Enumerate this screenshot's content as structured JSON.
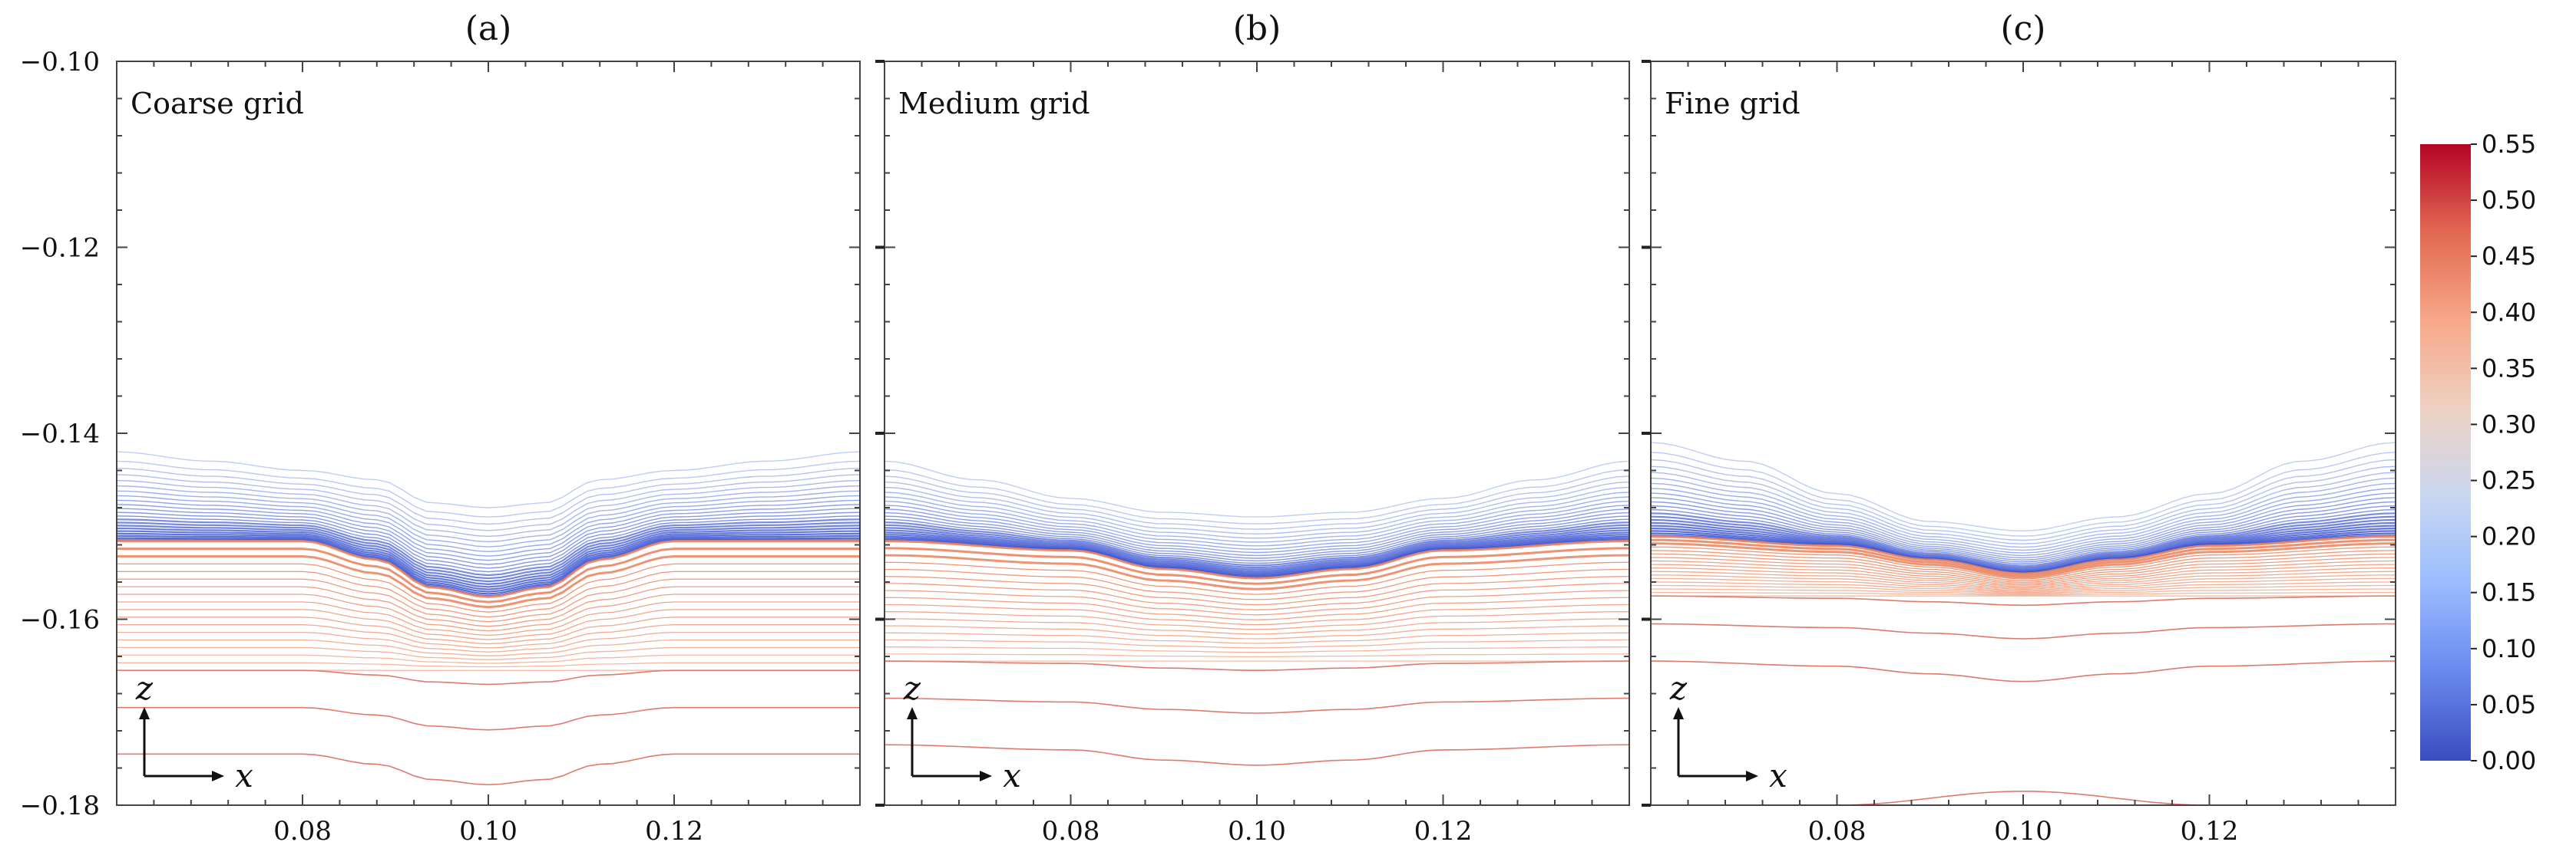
{
  "chart_data": [
    {
      "type": "contour",
      "panel_label": "(a)",
      "annotation": "Coarse grid",
      "xlim": [
        0.06,
        0.14
      ],
      "ylim": [
        -0.18,
        -0.1
      ],
      "x_ticks": [
        "0.08",
        "0.10",
        "0.12"
      ],
      "y_ticks": [
        "−0.10",
        "−0.12",
        "−0.14",
        "−0.16",
        "−0.18"
      ],
      "surface_profile": {
        "x": [
          0.06,
          0.07,
          0.08,
          0.088,
          0.094,
          0.1,
          0.106,
          0.112,
          0.12,
          0.13,
          0.14
        ],
        "z": [
          -0.146,
          -0.147,
          -0.148,
          -0.149,
          -0.1515,
          -0.152,
          -0.1515,
          -0.149,
          -0.148,
          -0.147,
          -0.146
        ]
      },
      "interface_profile": {
        "x": [
          0.06,
          0.08,
          0.088,
          0.094,
          0.1,
          0.106,
          0.112,
          0.12,
          0.14
        ],
        "z": [
          -0.151,
          -0.151,
          -0.153,
          -0.156,
          -0.157,
          -0.156,
          -0.153,
          -0.151,
          -0.151
        ]
      },
      "deep_isolines_z": [
        -0.1745,
        -0.1695,
        -0.1655
      ],
      "axes_indicator": {
        "horizontal": "x",
        "vertical": "z"
      }
    },
    {
      "type": "contour",
      "panel_label": "(b)",
      "annotation": "Medium grid",
      "xlim": [
        0.06,
        0.14
      ],
      "ylim": [
        -0.18,
        -0.1
      ],
      "x_ticks": [
        "0.08",
        "0.10",
        "0.12"
      ],
      "surface_profile": {
        "x": [
          0.06,
          0.07,
          0.08,
          0.09,
          0.1,
          0.11,
          0.12,
          0.13,
          0.14
        ],
        "z": [
          -0.147,
          -0.149,
          -0.151,
          -0.1525,
          -0.153,
          -0.1525,
          -0.151,
          -0.149,
          -0.147
        ]
      },
      "interface_profile": {
        "x": [
          0.06,
          0.08,
          0.09,
          0.1,
          0.11,
          0.12,
          0.14
        ],
        "z": [
          -0.151,
          -0.152,
          -0.154,
          -0.155,
          -0.154,
          -0.152,
          -0.151
        ]
      },
      "deep_isolines_z": [
        -0.1735,
        -0.1685,
        -0.1645
      ],
      "axes_indicator": {
        "horizontal": "x",
        "vertical": "z"
      }
    },
    {
      "type": "contour",
      "panel_label": "(c)",
      "annotation": "Fine grid",
      "xlim": [
        0.06,
        0.14
      ],
      "ylim": [
        -0.18,
        -0.1
      ],
      "x_ticks": [
        "0.08",
        "0.10",
        "0.12"
      ],
      "surface_profile": {
        "x": [
          0.06,
          0.07,
          0.08,
          0.09,
          0.1,
          0.11,
          0.12,
          0.13,
          0.14
        ],
        "z": [
          -0.145,
          -0.147,
          -0.1505,
          -0.1535,
          -0.1545,
          -0.153,
          -0.1505,
          -0.147,
          -0.145
        ]
      },
      "interface_profile": {
        "x": [
          0.06,
          0.08,
          0.09,
          0.1,
          0.11,
          0.12,
          0.14
        ],
        "z": [
          -0.1505,
          -0.1515,
          -0.153,
          -0.1545,
          -0.153,
          -0.1515,
          -0.1505
        ]
      },
      "deep_isolines_z": [
        -0.1645,
        -0.1605,
        -0.1575
      ],
      "bottom_arc": {
        "x": [
          0.08,
          0.1,
          0.12
        ],
        "z": [
          -0.18,
          -0.1785,
          -0.18
        ]
      },
      "axes_indicator": {
        "horizontal": "x",
        "vertical": "z"
      }
    }
  ],
  "colorbar": {
    "min": 0.0,
    "max": 0.55,
    "ticks": [
      "0.55",
      "0.50",
      "0.45",
      "0.40",
      "0.35",
      "0.30",
      "0.25",
      "0.20",
      "0.15",
      "0.10",
      "0.05",
      "0.00"
    ],
    "colormap": "coolwarm",
    "colors": [
      "#3b4cc0",
      "#6889ee",
      "#9abbff",
      "#c9d7f0",
      "#edd1c2",
      "#f7a889",
      "#e26952",
      "#b40426"
    ]
  }
}
